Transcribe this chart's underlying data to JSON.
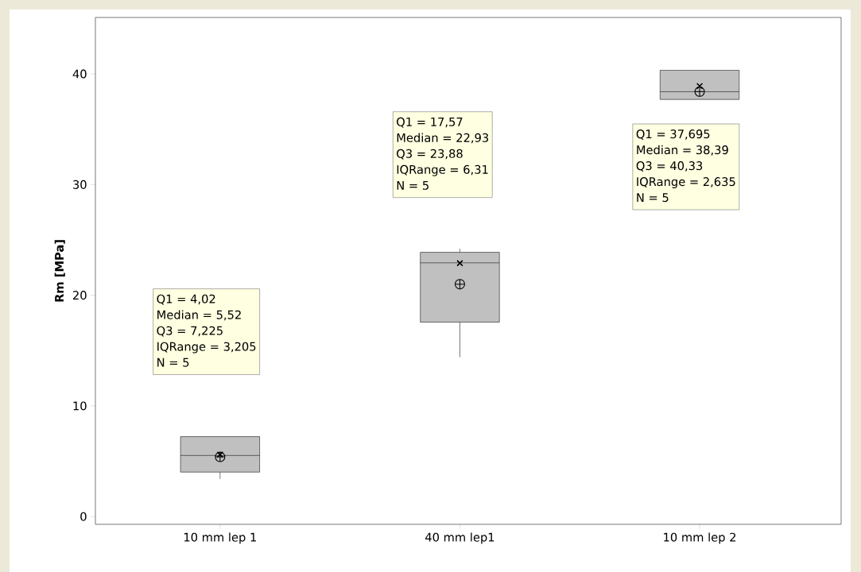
{
  "chart_data": {
    "type": "box",
    "ylabel": "Rm [MPa]",
    "categories": [
      "10 mm lep 1",
      "40 mm lep1",
      "10 mm lep 2"
    ],
    "boxes": [
      {
        "low": 3.4,
        "q1": 4.02,
        "median": 5.52,
        "q3": 7.225,
        "high": 7.225,
        "mean": 5.4
      },
      {
        "low": 14.4,
        "q1": 17.57,
        "median": 22.93,
        "q3": 23.88,
        "high": 24.2,
        "mean": 21.0
      },
      {
        "low": 37.695,
        "q1": 37.695,
        "median": 38.39,
        "q3": 40.33,
        "high": 40.33,
        "mean": 38.4
      }
    ],
    "color": "#c0c0c0",
    "series": [
      {
        "type": "scatter",
        "x": [
          "10 mm lep 1",
          "40 mm lep1",
          "10 mm lep 2"
        ],
        "values": [
          5.6,
          22.9,
          38.9
        ],
        "color": "#000000",
        "marker": "cross"
      }
    ],
    "ylim": [
      -0.7,
      45.1
    ],
    "yticks": [
      0,
      10,
      20,
      30,
      40
    ],
    "grid": false,
    "annotations": [
      "Q1 = 4,02",
      "Median = 5,52",
      "Q3 = 7,225",
      "IQRange = 3,205",
      "N = 5",
      "Q1 = 17,57",
      "Median = 22,93",
      "Q3 = 23,88",
      "IQRange = 6,31",
      "N = 5",
      "Q1 = 37,695",
      "Median = 38,39",
      "Q3 = 40,33",
      "IQRange = 2,635",
      "N = 5"
    ]
  }
}
